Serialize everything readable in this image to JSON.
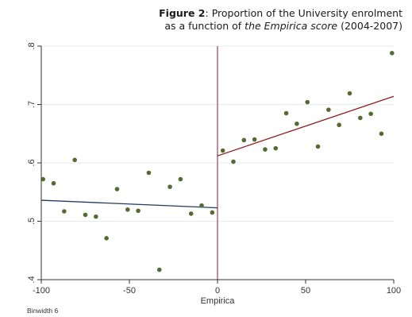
{
  "caption": {
    "label": "Figure 2",
    "line1_rest": ": Proportion of the University enrolment",
    "line2_pre": "as a function of ",
    "line2_italic": "the Empirica score",
    "line2_post": " (2004-2007)"
  },
  "chart_data": {
    "type": "scatter",
    "xlabel": "Empirica",
    "ylabel": "",
    "xlim": [
      -100,
      100
    ],
    "ylim": [
      0.4,
      0.8
    ],
    "xticks": [
      -100,
      -50,
      0,
      50,
      100
    ],
    "xtick_labels": [
      "-100",
      "-50",
      "0",
      "50",
      "100"
    ],
    "yticks": [
      0.4,
      0.5,
      0.6,
      0.7,
      0.8
    ],
    "ytick_labels": [
      ".4",
      ".5",
      ".6",
      ".7",
      ".8"
    ],
    "grid": true,
    "note": "Binwidth 6",
    "cutoff": 0,
    "series": [
      {
        "type": "scatter",
        "color": "#556b2f",
        "x": [
          -99,
          -93,
          -87,
          -81,
          -75,
          -69,
          -63,
          -57,
          -51,
          -45,
          -39,
          -33,
          -27,
          -21,
          -15,
          -9,
          -3,
          3,
          9,
          15,
          21,
          27,
          33,
          39,
          45,
          51,
          57,
          63,
          69,
          75,
          81,
          87,
          93,
          99
        ],
        "y": [
          0.572,
          0.565,
          0.517,
          0.605,
          0.511,
          0.508,
          0.471,
          0.555,
          0.52,
          0.518,
          0.583,
          0.417,
          0.559,
          0.572,
          0.513,
          0.527,
          0.515,
          0.621,
          0.602,
          0.639,
          0.64,
          0.623,
          0.625,
          0.685,
          0.667,
          0.704,
          0.628,
          0.691,
          0.665,
          0.719,
          0.677,
          0.684,
          0.65,
          0.788
        ]
      },
      {
        "type": "line",
        "color": "#1f3a5f",
        "x": [
          -100,
          0
        ],
        "y": [
          0.536,
          0.523
        ]
      },
      {
        "type": "line",
        "color": "#8b1a1a",
        "x": [
          0,
          100
        ],
        "y": [
          0.612,
          0.714
        ]
      }
    ],
    "colors": {
      "axis": "#333333",
      "grid": "#e4eaee",
      "cutoff_line": "#a0405a"
    }
  }
}
